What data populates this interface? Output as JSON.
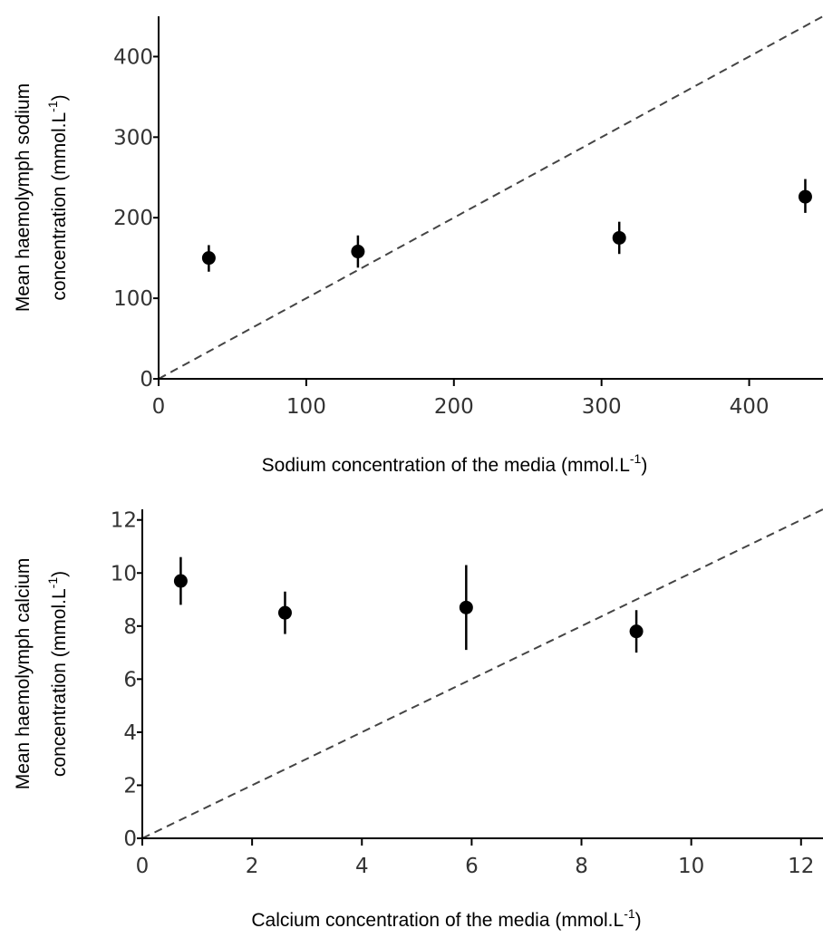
{
  "chart_data": [
    {
      "type": "scatter",
      "xlabel": "Sodium concentration of the media (mmol.L",
      "xlabel_sup": "-1",
      "xlabel_end": ")",
      "ylabel_line1": "Mean haemolymph sodium",
      "ylabel_line2": "concentration (mmol.L",
      "ylabel_sup": "-1",
      "ylabel_end": ")",
      "xlim": [
        0,
        450
      ],
      "ylim": [
        0,
        450
      ],
      "xticks": [
        0,
        100,
        200,
        300,
        400
      ],
      "yticks": [
        0,
        100,
        200,
        300,
        400
      ],
      "reference_line": "y = x (dashed)",
      "grid": false,
      "points": [
        {
          "x": 34,
          "y": 150,
          "err_low": 133,
          "err_high": 166
        },
        {
          "x": 135,
          "y": 158,
          "err_low": 138,
          "err_high": 178
        },
        {
          "x": 312,
          "y": 175,
          "err_low": 155,
          "err_high": 195
        },
        {
          "x": 438,
          "y": 226,
          "err_low": 206,
          "err_high": 248
        }
      ]
    },
    {
      "type": "scatter",
      "xlabel": "Calcium concentration of the media (mmol.L",
      "xlabel_sup": "-1",
      "xlabel_end": ")",
      "ylabel_line1": "Mean haemolymph calcium",
      "ylabel_line2": "concentration (mmol.L",
      "ylabel_sup": "-1",
      "ylabel_end": ")",
      "xlim": [
        0,
        12.4
      ],
      "ylim": [
        0,
        12.4
      ],
      "xticks": [
        0,
        2,
        4,
        6,
        8,
        10,
        12
      ],
      "yticks": [
        0,
        2,
        4,
        6,
        8,
        10,
        12
      ],
      "reference_line": "y = x (dashed)",
      "grid": false,
      "points": [
        {
          "x": 0.7,
          "y": 9.7,
          "err_low": 8.8,
          "err_high": 10.6
        },
        {
          "x": 2.6,
          "y": 8.5,
          "err_low": 7.7,
          "err_high": 9.3
        },
        {
          "x": 5.9,
          "y": 8.7,
          "err_low": 7.1,
          "err_high": 10.3
        },
        {
          "x": 9.0,
          "y": 7.8,
          "err_low": 7.0,
          "err_high": 8.6
        }
      ]
    }
  ]
}
